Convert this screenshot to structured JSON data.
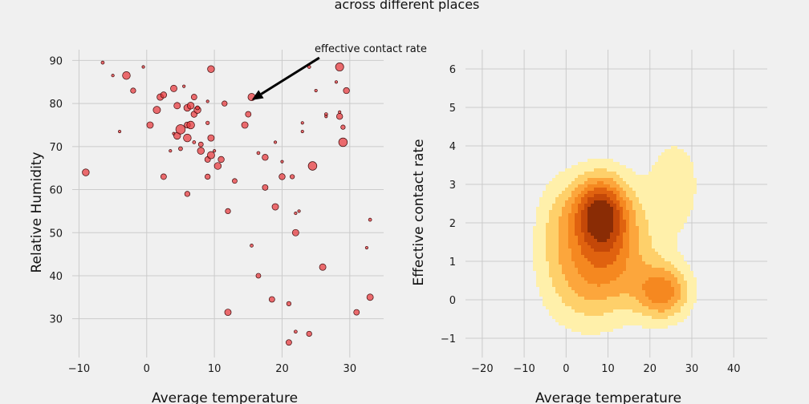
{
  "title": "across different places",
  "chart_data": [
    {
      "type": "scatter",
      "xlabel": "Average temperature",
      "ylabel": "Relative Humidity",
      "xlim": [
        -11,
        35
      ],
      "ylim": [
        21,
        92.5
      ],
      "xticks": [
        -10,
        0,
        10,
        20,
        30
      ],
      "yticks": [
        30,
        40,
        50,
        60,
        70,
        80,
        90
      ],
      "marker_color": "#e8363a",
      "grid": true,
      "annotation": {
        "text": "effective contact rate",
        "point": [
          15.5,
          80.8
        ],
        "text_at": [
          25.5,
          91
        ]
      },
      "points": [
        {
          "x": -9.0,
          "y": 64.0,
          "s": 0.6
        },
        {
          "x": -6.5,
          "y": 89.5,
          "s": 0.15
        },
        {
          "x": -5.0,
          "y": 86.5,
          "s": 0.1
        },
        {
          "x": -4.0,
          "y": 73.5,
          "s": 0.1
        },
        {
          "x": -3.0,
          "y": 86.5,
          "s": 0.7
        },
        {
          "x": -2.0,
          "y": 83.0,
          "s": 0.4
        },
        {
          "x": -0.5,
          "y": 88.5,
          "s": 0.1
        },
        {
          "x": 0.5,
          "y": 75.0,
          "s": 0.55
        },
        {
          "x": 1.5,
          "y": 78.5,
          "s": 0.65
        },
        {
          "x": 2.0,
          "y": 81.5,
          "s": 0.55
        },
        {
          "x": 2.5,
          "y": 82.0,
          "s": 0.5
        },
        {
          "x": 2.5,
          "y": 63.0,
          "s": 0.45
        },
        {
          "x": 3.5,
          "y": 69.0,
          "s": 0.1
        },
        {
          "x": 4.0,
          "y": 83.5,
          "s": 0.55
        },
        {
          "x": 4.0,
          "y": 73.0,
          "s": 0.1
        },
        {
          "x": 4.5,
          "y": 79.5,
          "s": 0.55
        },
        {
          "x": 4.5,
          "y": 72.5,
          "s": 0.6
        },
        {
          "x": 5.0,
          "y": 74.0,
          "s": 0.9
        },
        {
          "x": 5.0,
          "y": 69.5,
          "s": 0.25
        },
        {
          "x": 5.5,
          "y": 84.0,
          "s": 0.1
        },
        {
          "x": 6.0,
          "y": 79.0,
          "s": 0.6
        },
        {
          "x": 6.0,
          "y": 75.0,
          "s": 0.5
        },
        {
          "x": 6.0,
          "y": 72.0,
          "s": 0.7
        },
        {
          "x": 6.0,
          "y": 59.0,
          "s": 0.4
        },
        {
          "x": 6.5,
          "y": 79.5,
          "s": 0.6
        },
        {
          "x": 6.5,
          "y": 75.0,
          "s": 0.7
        },
        {
          "x": 7.0,
          "y": 81.5,
          "s": 0.45
        },
        {
          "x": 7.0,
          "y": 77.5,
          "s": 0.5
        },
        {
          "x": 7.0,
          "y": 71.0,
          "s": 0.15
        },
        {
          "x": 7.5,
          "y": 78.5,
          "s": 0.6
        },
        {
          "x": 7.5,
          "y": 79.0,
          "s": 0.25
        },
        {
          "x": 8.0,
          "y": 70.5,
          "s": 0.35
        },
        {
          "x": 8.0,
          "y": 69.0,
          "s": 0.6
        },
        {
          "x": 9.0,
          "y": 80.5,
          "s": 0.1
        },
        {
          "x": 9.0,
          "y": 75.5,
          "s": 0.2
        },
        {
          "x": 9.0,
          "y": 67.0,
          "s": 0.45
        },
        {
          "x": 9.0,
          "y": 63.0,
          "s": 0.4
        },
        {
          "x": 9.5,
          "y": 88.0,
          "s": 0.6
        },
        {
          "x": 9.5,
          "y": 72.0,
          "s": 0.55
        },
        {
          "x": 9.5,
          "y": 68.0,
          "s": 0.65
        },
        {
          "x": 10.0,
          "y": 69.0,
          "s": 0.1
        },
        {
          "x": 10.5,
          "y": 65.5,
          "s": 0.6
        },
        {
          "x": 11.0,
          "y": 67.0,
          "s": 0.5
        },
        {
          "x": 11.5,
          "y": 80.0,
          "s": 0.4
        },
        {
          "x": 12.0,
          "y": 55.0,
          "s": 0.4
        },
        {
          "x": 12.0,
          "y": 31.5,
          "s": 0.55
        },
        {
          "x": 13.0,
          "y": 62.0,
          "s": 0.35
        },
        {
          "x": 14.5,
          "y": 75.0,
          "s": 0.55
        },
        {
          "x": 15.0,
          "y": 77.5,
          "s": 0.45
        },
        {
          "x": 15.5,
          "y": 81.5,
          "s": 0.65
        },
        {
          "x": 15.5,
          "y": 47.0,
          "s": 0.15
        },
        {
          "x": 16.5,
          "y": 68.5,
          "s": 0.15
        },
        {
          "x": 16.5,
          "y": 40.0,
          "s": 0.35
        },
        {
          "x": 17.5,
          "y": 67.5,
          "s": 0.5
        },
        {
          "x": 17.5,
          "y": 60.5,
          "s": 0.45
        },
        {
          "x": 18.5,
          "y": 34.5,
          "s": 0.45
        },
        {
          "x": 19.0,
          "y": 56.0,
          "s": 0.55
        },
        {
          "x": 19.0,
          "y": 71.0,
          "s": 0.1
        },
        {
          "x": 20.0,
          "y": 63.0,
          "s": 0.5
        },
        {
          "x": 20.0,
          "y": 66.5,
          "s": 0.1
        },
        {
          "x": 21.0,
          "y": 33.5,
          "s": 0.3
        },
        {
          "x": 21.0,
          "y": 24.5,
          "s": 0.45
        },
        {
          "x": 21.5,
          "y": 63.0,
          "s": 0.3
        },
        {
          "x": 22.0,
          "y": 54.5,
          "s": 0.1
        },
        {
          "x": 22.0,
          "y": 50.0,
          "s": 0.55
        },
        {
          "x": 22.0,
          "y": 27.0,
          "s": 0.15
        },
        {
          "x": 22.5,
          "y": 55.0,
          "s": 0.1
        },
        {
          "x": 23.0,
          "y": 75.5,
          "s": 0.1
        },
        {
          "x": 23.0,
          "y": 73.5,
          "s": 0.1
        },
        {
          "x": 24.0,
          "y": 88.5,
          "s": 0.15
        },
        {
          "x": 24.0,
          "y": 26.5,
          "s": 0.4
        },
        {
          "x": 24.5,
          "y": 65.5,
          "s": 0.8
        },
        {
          "x": 25.0,
          "y": 83.0,
          "s": 0.1
        },
        {
          "x": 26.0,
          "y": 42.0,
          "s": 0.55
        },
        {
          "x": 26.5,
          "y": 77.5,
          "s": 0.15
        },
        {
          "x": 26.5,
          "y": 77.0,
          "s": 0.1
        },
        {
          "x": 28.0,
          "y": 85.0,
          "s": 0.1
        },
        {
          "x": 28.5,
          "y": 88.5,
          "s": 0.75
        },
        {
          "x": 28.5,
          "y": 77.0,
          "s": 0.5
        },
        {
          "x": 28.5,
          "y": 78.0,
          "s": 0.1
        },
        {
          "x": 29.0,
          "y": 74.5,
          "s": 0.3
        },
        {
          "x": 29.0,
          "y": 71.0,
          "s": 0.8
        },
        {
          "x": 29.5,
          "y": 83.0,
          "s": 0.5
        },
        {
          "x": 31.0,
          "y": 31.5,
          "s": 0.45
        },
        {
          "x": 32.5,
          "y": 46.5,
          "s": 0.1
        },
        {
          "x": 33.0,
          "y": 53.0,
          "s": 0.15
        },
        {
          "x": 33.0,
          "y": 35.0,
          "s": 0.55
        }
      ]
    },
    {
      "type": "kde_contour",
      "xlabel": "Average temperature",
      "ylabel": "Effective contact rate",
      "xlim": [
        -24,
        48
      ],
      "ylim": [
        -1.5,
        6.5
      ],
      "xticks": [
        -20,
        -10,
        0,
        10,
        20,
        30,
        40
      ],
      "yticks": [
        -1,
        0,
        1,
        2,
        3,
        4,
        5,
        6
      ],
      "levels": [
        "#fff0aa",
        "#fed06a",
        "#fca63c",
        "#f58820",
        "#e0620f",
        "#c44808",
        "#8a2c05"
      ],
      "grid": true,
      "density_components": [
        {
          "x": 8,
          "y": 2.3,
          "sx": 4.5,
          "sy": 0.65,
          "w": 1.0
        },
        {
          "x": 11,
          "y": 1.3,
          "sx": 7,
          "sy": 1.0,
          "w": 0.55
        },
        {
          "x": 23,
          "y": 0.2,
          "sx": 4.5,
          "sy": 0.5,
          "w": 0.7
        },
        {
          "x": 4,
          "y": 0.5,
          "sx": 7,
          "sy": 0.9,
          "w": 0.35
        },
        {
          "x": 26,
          "y": 3.0,
          "sx": 5,
          "sy": 1.0,
          "w": 0.22
        },
        {
          "x": -2,
          "y": 2.0,
          "sx": 4,
          "sy": 0.9,
          "w": 0.25
        }
      ]
    }
  ]
}
